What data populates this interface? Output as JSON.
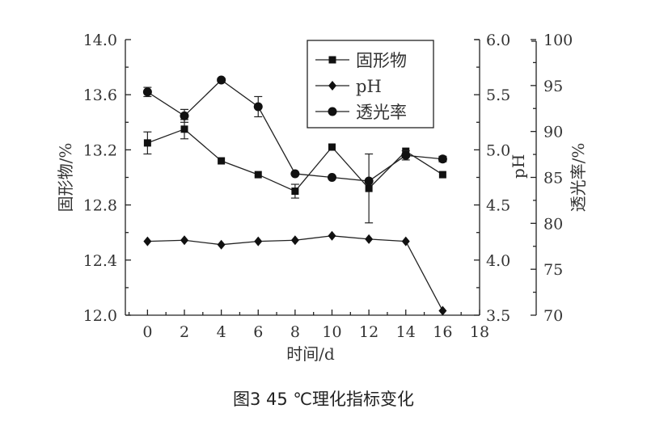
{
  "caption": "图3  45 ℃理化指标变化",
  "chart_data": {
    "type": "line",
    "xlabel": "时间/d",
    "x": [
      0,
      2,
      4,
      6,
      8,
      10,
      12,
      14,
      16
    ],
    "xticks": [
      0,
      2,
      4,
      6,
      8,
      10,
      12,
      14,
      16,
      18
    ],
    "xlim": [
      -1.2,
      18
    ],
    "axes": {
      "left": {
        "label": "固形物/%",
        "lim": [
          12.0,
          14.0
        ],
        "ticks": [
          "12.0",
          "12.4",
          "12.8",
          "13.2",
          "13.6",
          "14.0"
        ]
      },
      "right1": {
        "label": "pH",
        "lim": [
          3.5,
          6.0
        ],
        "ticks": [
          "3.5",
          "4.0",
          "4.5",
          "5.0",
          "5.5",
          "6.0"
        ]
      },
      "right2": {
        "label": "透光率/%",
        "lim": [
          70,
          100
        ],
        "ticks": [
          "70",
          "75",
          "80",
          "85",
          "90",
          "95",
          "100"
        ]
      }
    },
    "legend": {
      "placement": "top-right"
    },
    "grid": false,
    "series": [
      {
        "name": "固形物",
        "axis": "left",
        "marker": "square",
        "values": [
          13.25,
          13.35,
          13.12,
          13.02,
          12.9,
          13.22,
          12.92,
          13.19,
          13.02
        ],
        "errors": [
          0.08,
          0.07,
          0,
          0,
          0.05,
          0,
          0.25,
          0,
          0
        ]
      },
      {
        "name": "pH",
        "axis": "right1",
        "marker": "diamond",
        "values": [
          4.17,
          4.18,
          4.14,
          4.17,
          4.18,
          4.22,
          4.19,
          4.17,
          3.54
        ],
        "errors": [
          0,
          0,
          0,
          0,
          0,
          0,
          0,
          0,
          0
        ]
      },
      {
        "name": "透光率",
        "axis": "right2",
        "marker": "circle",
        "values": [
          94.3,
          91.7,
          95.6,
          92.7,
          85.4,
          85.0,
          84.6,
          87.4,
          87.0
        ],
        "errors": [
          0.5,
          0.7,
          0.2,
          1.1,
          0,
          0,
          0,
          0.5,
          0.3
        ]
      }
    ]
  }
}
